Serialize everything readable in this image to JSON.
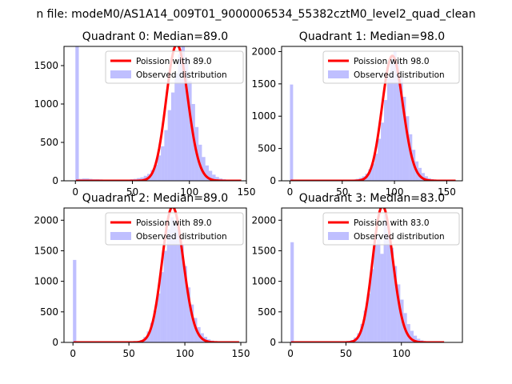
{
  "figure_title": "n file: modeM0/AS1A14_009T01_9000006534_55382cztM0_level2_quad_clean",
  "colors": {
    "hist": "#7f7fff",
    "curve": "#ff0000",
    "axis": "#000000"
  },
  "chart_data": [
    {
      "type": "bar",
      "title": "Quadrant 0: Median=89.0",
      "legend": {
        "curve": "Poission with 89.0",
        "hist": "Observed distribution",
        "placement": "top-right"
      },
      "xlim": [
        -10,
        150
      ],
      "ylim": [
        0,
        1750
      ],
      "xticks": [
        0,
        50,
        100,
        150
      ],
      "xtick_labels": [
        "0",
        "50",
        "100",
        "150"
      ],
      "yticks": [
        0,
        500,
        1000,
        1500
      ],
      "ytick_labels": [
        "0",
        "500",
        "1000",
        "1500"
      ],
      "bin_width": 3,
      "hist_x": [
        0,
        3,
        6,
        9,
        12,
        15,
        18,
        21,
        24,
        27,
        30,
        33,
        36,
        39,
        42,
        45,
        48,
        51,
        54,
        57,
        60,
        63,
        66,
        69,
        72,
        75,
        78,
        81,
        84,
        87,
        90,
        93,
        96,
        99,
        102,
        105,
        108,
        111,
        114,
        117,
        120,
        123,
        126,
        129,
        132,
        135,
        138,
        141
      ],
      "hist_y": [
        1750,
        25,
        30,
        30,
        25,
        20,
        20,
        18,
        15,
        15,
        15,
        15,
        15,
        15,
        15,
        15,
        20,
        25,
        35,
        45,
        65,
        90,
        140,
        210,
        330,
        450,
        660,
        920,
        1150,
        1400,
        1650,
        1780,
        1600,
        1300,
        1000,
        700,
        470,
        310,
        200,
        130,
        80,
        50,
        30,
        20,
        15,
        10,
        8,
        5
      ],
      "mu": 89,
      "total": 14000,
      "curve_x_range": [
        0,
        145
      ]
    },
    {
      "type": "bar",
      "title": "Quadrant 1: Median=98.0",
      "legend": {
        "curve": "Poission with 98.0",
        "hist": "Observed distribution",
        "placement": "top-right"
      },
      "xlim": [
        -8,
        165
      ],
      "ylim": [
        0,
        2080
      ],
      "xticks": [
        0,
        50,
        100,
        150
      ],
      "xtick_labels": [
        "0",
        "50",
        "100",
        "150"
      ],
      "yticks": [
        0,
        500,
        1000,
        1500,
        2000
      ],
      "ytick_labels": [
        "0",
        "500",
        "1000",
        "1500",
        "2000"
      ],
      "bin_width": 3,
      "hist_x": [
        0,
        3,
        6,
        9,
        12,
        15,
        18,
        21,
        24,
        27,
        30,
        33,
        36,
        39,
        42,
        45,
        48,
        51,
        54,
        57,
        60,
        63,
        66,
        69,
        72,
        75,
        78,
        81,
        84,
        87,
        90,
        93,
        96,
        99,
        102,
        105,
        108,
        111,
        114,
        117,
        120,
        123,
        126,
        129,
        132,
        135,
        138,
        141,
        144,
        147,
        150,
        153
      ],
      "hist_y": [
        1490,
        5,
        5,
        5,
        5,
        5,
        5,
        5,
        5,
        5,
        5,
        5,
        5,
        5,
        5,
        8,
        8,
        10,
        12,
        15,
        20,
        30,
        45,
        70,
        110,
        180,
        270,
        420,
        650,
        900,
        1250,
        1600,
        1900,
        2000,
        1850,
        1600,
        1300,
        1000,
        720,
        480,
        300,
        200,
        120,
        70,
        40,
        25,
        15,
        10,
        8,
        5,
        3,
        2
      ],
      "mu": 98,
      "total": 16000,
      "curve_x_range": [
        0,
        158
      ]
    },
    {
      "type": "bar",
      "title": "Quadrant 2: Median=89.0",
      "legend": {
        "curve": "Poission with 89.0",
        "hist": "Observed distribution",
        "placement": "top-right"
      },
      "xlim": [
        -8,
        155
      ],
      "ylim": [
        0,
        2200
      ],
      "xticks": [
        0,
        50,
        100,
        150
      ],
      "xtick_labels": [
        "0",
        "50",
        "100",
        "150"
      ],
      "yticks": [
        0,
        500,
        1000,
        1500,
        2000
      ],
      "ytick_labels": [
        "0",
        "500",
        "1000",
        "1500",
        "2000"
      ],
      "bin_width": 3,
      "hist_x": [
        0,
        3,
        6,
        9,
        12,
        15,
        18,
        21,
        24,
        27,
        30,
        33,
        36,
        39,
        42,
        45,
        48,
        51,
        54,
        57,
        60,
        63,
        66,
        69,
        72,
        75,
        78,
        81,
        84,
        87,
        90,
        93,
        96,
        99,
        102,
        105,
        108,
        111,
        114,
        117,
        120,
        123,
        126,
        129,
        132,
        135,
        138,
        141,
        144,
        147
      ],
      "hist_y": [
        1350,
        5,
        5,
        5,
        5,
        5,
        5,
        5,
        5,
        5,
        5,
        5,
        5,
        5,
        5,
        5,
        8,
        10,
        12,
        20,
        40,
        90,
        180,
        320,
        520,
        800,
        1150,
        1500,
        1850,
        2050,
        2000,
        1850,
        1600,
        1250,
        900,
        620,
        400,
        250,
        150,
        90,
        50,
        30,
        18,
        10,
        6,
        4,
        3,
        2,
        1,
        1
      ],
      "mu": 89,
      "total": 17500,
      "curve_x_range": [
        0,
        148
      ]
    },
    {
      "type": "bar",
      "title": "Quadrant 3: Median=83.0",
      "legend": {
        "curve": "Poission with 83.0",
        "hist": "Observed distribution",
        "placement": "top-right"
      },
      "xlim": [
        -8,
        155
      ],
      "ylim": [
        0,
        2200
      ],
      "xticks": [
        0,
        50,
        100
      ],
      "xtick_labels": [
        "0",
        "50",
        "100"
      ],
      "yticks": [
        0,
        500,
        1000,
        1500,
        2000
      ],
      "ytick_labels": [
        "0",
        "500",
        "1000",
        "1500",
        "2000"
      ],
      "bin_width": 3,
      "hist_x": [
        0,
        3,
        6,
        9,
        12,
        15,
        18,
        21,
        24,
        27,
        30,
        33,
        36,
        39,
        42,
        45,
        48,
        51,
        54,
        57,
        60,
        63,
        66,
        69,
        72,
        75,
        78,
        81,
        84,
        87,
        90,
        93,
        96,
        99,
        102,
        105,
        108,
        111,
        114,
        117,
        120,
        123,
        126,
        129,
        132,
        135
      ],
      "hist_y": [
        1640,
        5,
        5,
        5,
        5,
        5,
        5,
        5,
        5,
        5,
        5,
        5,
        5,
        5,
        8,
        10,
        15,
        25,
        40,
        80,
        150,
        300,
        520,
        800,
        1200,
        1600,
        1750,
        1450,
        2100,
        1800,
        1550,
        1250,
        950,
        700,
        480,
        300,
        190,
        110,
        60,
        35,
        20,
        12,
        8,
        5,
        3,
        2
      ],
      "mu": 83,
      "total": 17000,
      "curve_x_range": [
        0,
        138
      ]
    }
  ]
}
